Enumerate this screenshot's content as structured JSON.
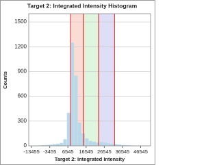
{
  "chart_data": {
    "type": "histogram",
    "title": "Target 2: Integrated Intensity Histogram",
    "x_label": "Target 2: Integrated Intensity",
    "y_label": "Counts",
    "bins": [
      -14000,
      -12000,
      -10000,
      -8000,
      -6000,
      -4000,
      -2000,
      0,
      2000,
      4000,
      6000,
      8000,
      10000,
      12000,
      14000,
      16000,
      18000,
      20000,
      22000,
      24000,
      26000,
      28000,
      30000,
      32000,
      34000,
      36000,
      38000,
      40000,
      42000,
      44000,
      46000,
      48000,
      50000
    ],
    "values": [
      2,
      3,
      5,
      8,
      10,
      15,
      20,
      25,
      35,
      80,
      400,
      1250,
      850,
      280,
      150,
      90,
      60,
      50,
      40,
      45,
      40,
      30,
      25,
      20,
      15,
      10,
      8,
      6,
      4,
      3,
      2,
      1
    ],
    "color": "#b9d9ea",
    "regions": [
      {
        "start": 8000,
        "end": 15200,
        "color": "#fadcd4"
      },
      {
        "start": 15200,
        "end": 23500,
        "color": "#def5de"
      },
      {
        "start": 23500,
        "end": 32200,
        "color": "#dedef6"
      }
    ],
    "region_line_color": "#e04848",
    "xlim": [
      -15000,
      52000
    ],
    "ylim": [
      0,
      1600
    ],
    "xticks": [
      -13455,
      -3455,
      6545,
      16545,
      26545,
      36545,
      46545
    ],
    "yticks": [
      0,
      300,
      600,
      900,
      1200,
      1500
    ],
    "grid": true
  }
}
